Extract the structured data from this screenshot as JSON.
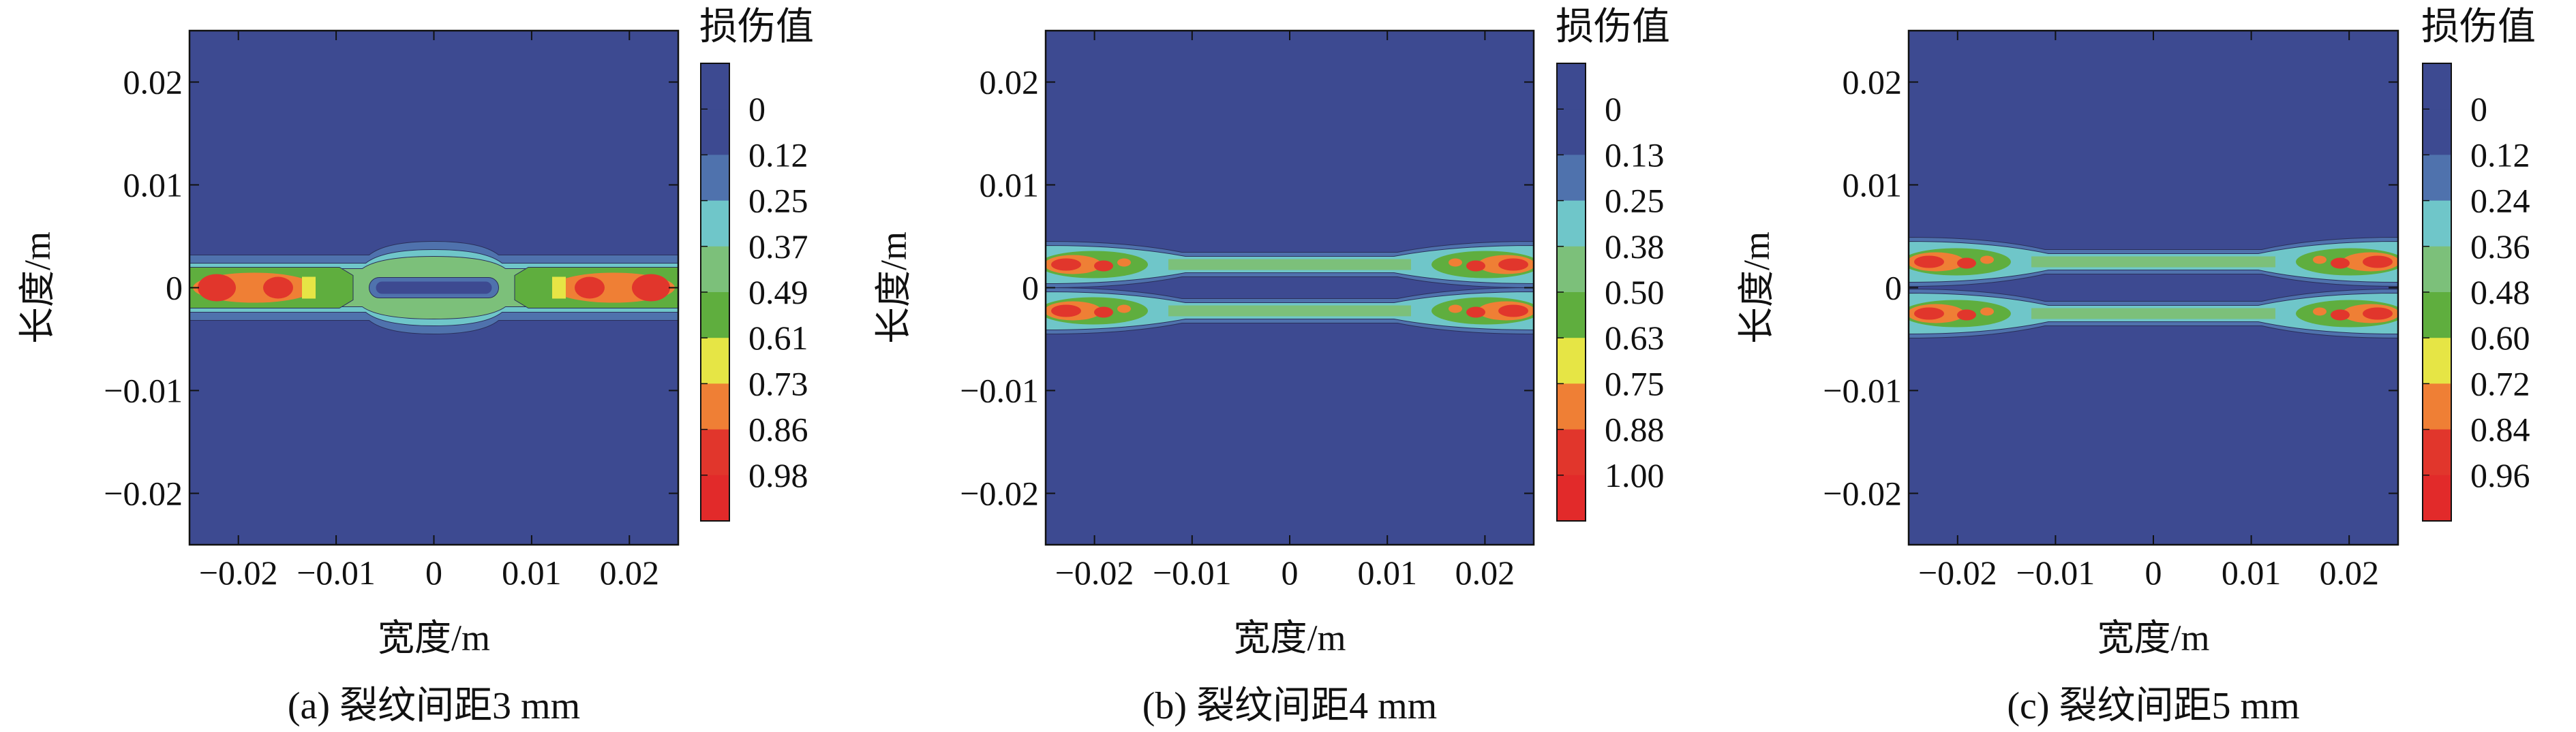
{
  "chart_data": [
    {
      "type": "heatmap",
      "panel_id": "a",
      "caption": "(a) 裂纹间距3 mm",
      "xlabel": "宽度/m",
      "ylabel": "长度/m",
      "xlim": [
        -0.025,
        0.025
      ],
      "ylim": [
        -0.025,
        0.025
      ],
      "xticks": [
        -0.02,
        -0.01,
        0,
        0.01,
        0.02
      ],
      "xtick_labels": [
        "−0.02",
        "−0.01",
        "0",
        "0.01",
        "0.02"
      ],
      "yticks": [
        0.02,
        0.01,
        0,
        -0.01,
        -0.02
      ],
      "ytick_labels": [
        "0.02",
        "0.01",
        "0",
        "−0.01",
        "−0.02"
      ],
      "colorbar": {
        "title": "损伤值",
        "levels": [
          "0",
          "0.12",
          "0.25",
          "0.37",
          "0.49",
          "0.61",
          "0.73",
          "0.86",
          "0.98"
        ],
        "colors": [
          "#3d4a91",
          "#3d4a91",
          "#4f72ad",
          "#6fc6c9",
          "#7cc07a",
          "#5fae3e",
          "#e6e545",
          "#ef7f35",
          "#e1362c",
          "#e22a2a"
        ]
      },
      "crack_spacing_mm": 3
    },
    {
      "type": "heatmap",
      "panel_id": "b",
      "caption": "(b) 裂纹间距4 mm",
      "xlabel": "宽度/m",
      "ylabel": "长度/m",
      "xlim": [
        -0.025,
        0.025
      ],
      "ylim": [
        -0.025,
        0.025
      ],
      "xticks": [
        -0.02,
        -0.01,
        0,
        0.01,
        0.02
      ],
      "xtick_labels": [
        "−0.02",
        "−0.01",
        "0",
        "0.01",
        "0.02"
      ],
      "yticks": [
        0.02,
        0.01,
        0,
        -0.01,
        -0.02
      ],
      "ytick_labels": [
        "0.02",
        "0.01",
        "0",
        "−0.01",
        "−0.02"
      ],
      "colorbar": {
        "title": "损伤值",
        "levels": [
          "0",
          "0.13",
          "0.25",
          "0.38",
          "0.50",
          "0.63",
          "0.75",
          "0.88",
          "1.00"
        ],
        "colors": [
          "#3d4a91",
          "#3d4a91",
          "#4f72ad",
          "#6fc6c9",
          "#7cc07a",
          "#5fae3e",
          "#e6e545",
          "#ef7f35",
          "#e1362c",
          "#e22a2a"
        ]
      },
      "crack_spacing_mm": 4
    },
    {
      "type": "heatmap",
      "panel_id": "c",
      "caption": "(c) 裂纹间距5 mm",
      "xlabel": "宽度/m",
      "ylabel": "长度/m",
      "xlim": [
        -0.025,
        0.025
      ],
      "ylim": [
        -0.025,
        0.025
      ],
      "xticks": [
        -0.02,
        -0.01,
        0,
        0.01,
        0.02
      ],
      "xtick_labels": [
        "−0.02",
        "−0.01",
        "0",
        "0.01",
        "0.02"
      ],
      "yticks": [
        0.02,
        0.01,
        0,
        -0.01,
        -0.02
      ],
      "ytick_labels": [
        "0.02",
        "0.01",
        "0",
        "−0.01",
        "−0.02"
      ],
      "colorbar": {
        "title": "损伤值",
        "levels": [
          "0",
          "0.12",
          "0.24",
          "0.36",
          "0.48",
          "0.60",
          "0.72",
          "0.84",
          "0.96"
        ],
        "colors": [
          "#3d4a91",
          "#3d4a91",
          "#4f72ad",
          "#6fc6c9",
          "#7cc07a",
          "#5fae3e",
          "#e6e545",
          "#ef7f35",
          "#e1362c",
          "#e22a2a"
        ]
      },
      "crack_spacing_mm": 5
    }
  ]
}
